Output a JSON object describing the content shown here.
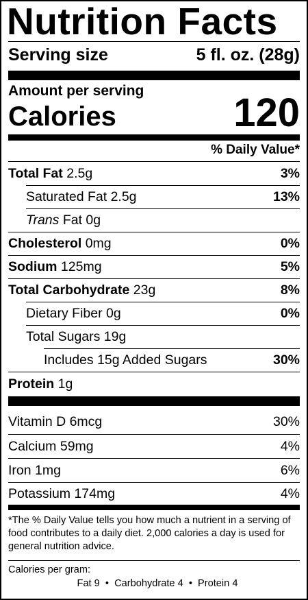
{
  "title": "Nutrition Facts",
  "serving": {
    "label": "Serving size",
    "value": "5 fl. oz. (28g)"
  },
  "amount_per_serving": "Amount per serving",
  "calories": {
    "label": "Calories",
    "value": "120"
  },
  "dv_header": "% Daily Value*",
  "nutrients": {
    "total_fat": {
      "label": "Total Fat",
      "amount": "2.5g",
      "dv": "3%"
    },
    "saturated_fat": {
      "label": "Saturated Fat 2.5g",
      "dv": "13%"
    },
    "trans_fat": {
      "label_italic": "Trans",
      "label_rest": " Fat 0g"
    },
    "cholesterol": {
      "label": "Cholesterol",
      "amount": "0mg",
      "dv": "0%"
    },
    "sodium": {
      "label": "Sodium",
      "amount": "125mg",
      "dv": "5%"
    },
    "total_carb": {
      "label": "Total Carbohydrate",
      "amount": "23g",
      "dv": "8%"
    },
    "fiber": {
      "label": "Dietary Fiber 0g",
      "dv": "0%"
    },
    "sugars": {
      "label": "Total Sugars 19g"
    },
    "added_sugars": {
      "label": "Includes 15g Added Sugars",
      "dv": "30%"
    },
    "protein": {
      "label": "Protein",
      "amount": "1g"
    }
  },
  "vitamins": [
    {
      "label": "Vitamin D 6mcg",
      "dv": "30%"
    },
    {
      "label": "Calcium 59mg",
      "dv": "4%"
    },
    {
      "label": "Iron 1mg",
      "dv": "6%"
    },
    {
      "label": "Potassium 174mg",
      "dv": "4%"
    }
  ],
  "footnote": "*The % Daily Value tells you how much a nutrient in a serving of food contributes to a daily diet. 2,000 calories a day is used for general nutrition advice.",
  "calories_per_gram": {
    "label": "Calories per gram:",
    "values": "Fat 9  •  Carbohydrate 4  •  Protein 4"
  }
}
